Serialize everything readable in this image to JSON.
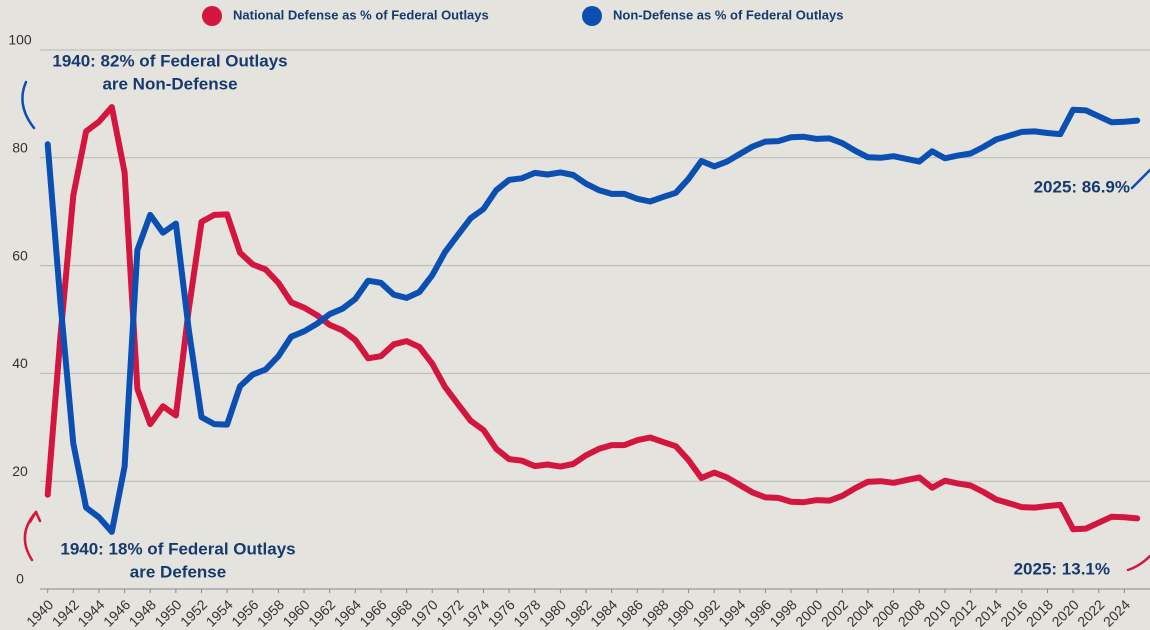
{
  "chart_data": {
    "type": "line",
    "x": [
      1940,
      1941,
      1942,
      1943,
      1944,
      1945,
      1946,
      1947,
      1948,
      1949,
      1950,
      1951,
      1952,
      1953,
      1954,
      1955,
      1956,
      1957,
      1958,
      1959,
      1960,
      1961,
      1962,
      1963,
      1964,
      1965,
      1966,
      1967,
      1968,
      1969,
      1970,
      1971,
      1972,
      1973,
      1974,
      1975,
      1976,
      1977,
      1978,
      1979,
      1980,
      1981,
      1982,
      1983,
      1984,
      1985,
      1986,
      1987,
      1988,
      1989,
      1990,
      1991,
      1992,
      1993,
      1994,
      1995,
      1996,
      1997,
      1998,
      1999,
      2000,
      2001,
      2002,
      2003,
      2004,
      2005,
      2006,
      2007,
      2008,
      2009,
      2010,
      2011,
      2012,
      2013,
      2014,
      2015,
      2016,
      2017,
      2018,
      2019,
      2020,
      2021,
      2022,
      2023,
      2024,
      2025
    ],
    "series": [
      {
        "name": "National Defense as % of Federal Outlays",
        "color": "#d3163f",
        "values": [
          17.5,
          47,
          73,
          84.9,
          86.7,
          89.4,
          77.3,
          37.1,
          30.6,
          33.9,
          32.2,
          51.8,
          68.1,
          69.4,
          69.5,
          62.4,
          60.2,
          59.3,
          56.8,
          53.2,
          52.2,
          50.8,
          49.0,
          48.0,
          46.2,
          42.8,
          43.2,
          45.4,
          46.0,
          44.9,
          41.8,
          37.5,
          34.3,
          31.2,
          29.5,
          26.0,
          24.1,
          23.8,
          22.8,
          23.1,
          22.7,
          23.2,
          24.8,
          26.0,
          26.7,
          26.7,
          27.6,
          28.1,
          27.3,
          26.5,
          23.9,
          20.6,
          21.6,
          20.7,
          19.3,
          17.9,
          17.0,
          16.9,
          16.2,
          16.1,
          16.5,
          16.4,
          17.3,
          18.7,
          19.9,
          20.0,
          19.7,
          20.2,
          20.7,
          18.8,
          20.1,
          19.6,
          19.2,
          18.0,
          16.6,
          15.9,
          15.2,
          15.1,
          15.4,
          15.6,
          11.1,
          11.2,
          12.3,
          13.4,
          13.3,
          13.1
        ]
      },
      {
        "name": "Non-Defense as % of Federal Outlays",
        "color": "#0b4fb3",
        "values": [
          82.5,
          53,
          27,
          15.1,
          13.3,
          10.6,
          22.7,
          62.9,
          69.4,
          66.1,
          67.8,
          48.2,
          31.9,
          30.6,
          30.5,
          37.6,
          39.8,
          40.7,
          43.2,
          46.8,
          47.8,
          49.2,
          51.0,
          52.0,
          53.8,
          57.2,
          56.8,
          54.6,
          54.0,
          55.1,
          58.2,
          62.5,
          65.7,
          68.8,
          70.5,
          74.0,
          75.9,
          76.2,
          77.2,
          76.9,
          77.3,
          76.8,
          75.2,
          74.0,
          73.3,
          73.3,
          72.4,
          71.9,
          72.7,
          73.5,
          76.1,
          79.4,
          78.4,
          79.3,
          80.7,
          82.1,
          83.0,
          83.1,
          83.8,
          83.9,
          83.5,
          83.6,
          82.7,
          81.3,
          80.1,
          80.0,
          80.3,
          79.8,
          79.3,
          81.2,
          79.9,
          80.4,
          80.8,
          82.0,
          83.4,
          84.1,
          84.8,
          84.9,
          84.6,
          84.4,
          88.9,
          88.8,
          87.7,
          86.6,
          86.7,
          86.9
        ]
      }
    ],
    "xlim": [
      1939.4,
      2026
    ],
    "xticks": [
      1940,
      1942,
      1944,
      1946,
      1948,
      1950,
      1952,
      1954,
      1956,
      1958,
      1960,
      1962,
      1964,
      1966,
      1968,
      1970,
      1972,
      1974,
      1976,
      1978,
      1980,
      1982,
      1984,
      1986,
      1988,
      1990,
      1992,
      1994,
      1996,
      1998,
      2000,
      2002,
      2004,
      2006,
      2008,
      2010,
      2012,
      2014,
      2016,
      2018,
      2020,
      2022,
      2024
    ],
    "ylim": [
      0,
      100
    ],
    "yticks": [
      0,
      20,
      40,
      60,
      80,
      100
    ],
    "grid": true,
    "legend": "top",
    "annotations": [
      {
        "lines": [
          "1940: 82% of Federal Outlays",
          "are Non-Defense"
        ]
      },
      {
        "lines": [
          "1940: 18% of Federal Outlays",
          "are Defense"
        ]
      },
      {
        "lines": [
          "2025: 86.9%"
        ]
      },
      {
        "lines": [
          "2025: 13.1%"
        ]
      }
    ]
  }
}
